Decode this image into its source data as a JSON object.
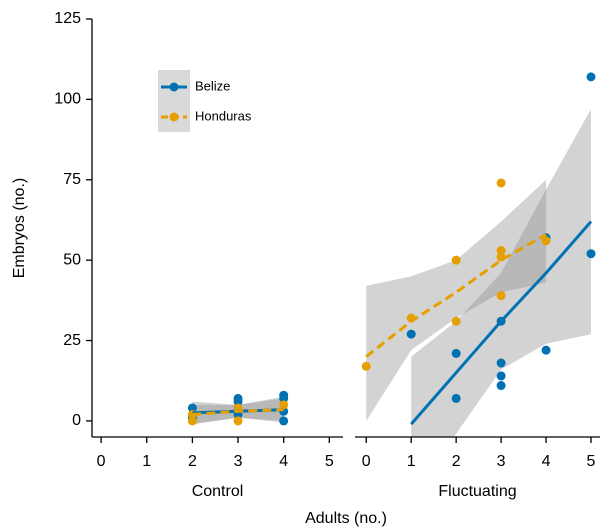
{
  "chart_data": {
    "type": "scatter",
    "ylabel": "Embryos (no.)",
    "xlabel": "Adults (no.)",
    "ylim": [
      -5,
      125
    ],
    "yticks": [
      0,
      25,
      50,
      75,
      100,
      125
    ],
    "legend": "upper left",
    "series": [
      {
        "name": "Belize",
        "color": "#0072b2",
        "line_style": "solid"
      },
      {
        "name": "Honduras",
        "color": "#e69f00",
        "line_style": "dashed"
      }
    ],
    "facets": [
      {
        "title": "Control",
        "xlim": [
          -0.2,
          5.3
        ],
        "xticks": [
          0,
          1,
          2,
          3,
          4,
          5
        ],
        "series": [
          {
            "x": [
              2,
              2,
              3,
              3,
              3,
              3,
              4,
              4,
              4,
              4
            ],
            "values": [
              4,
              1,
              7,
              6,
              2,
              3,
              8,
              7,
              3,
              0
            ],
            "fit": {
              "x": [
                2,
                3,
                4
              ],
              "values": [
                2.5,
                3,
                3.5
              ],
              "lower": [
                -1,
                1,
                -0.5
              ],
              "upper": [
                6,
                5,
                7.5
              ]
            }
          },
          {
            "x": [
              2,
              2,
              3,
              3,
              4
            ],
            "values": [
              0,
              2,
              0,
              4,
              5
            ],
            "fit": {
              "x": [
                2,
                3,
                4
              ],
              "values": [
                2,
                3,
                3.5
              ],
              "lower": [
                -1,
                1,
                0
              ],
              "upper": [
                5,
                5,
                7
              ]
            }
          }
        ]
      },
      {
        "title": "Fluctuating",
        "xlim": [
          -0.25,
          5.2
        ],
        "xticks": [
          0,
          1,
          2,
          3,
          4,
          5
        ],
        "series": [
          {
            "x": [
              1,
              2,
              2,
              3,
              3,
              3,
              3,
              4,
              4,
              5,
              5
            ],
            "values": [
              27,
              21,
              7,
              31,
              18,
              14,
              11,
              57,
              22,
              107,
              52
            ],
            "fit": {
              "x": [
                1,
                2,
                3,
                4,
                5
              ],
              "values": [
                -1,
                15,
                31,
                46,
                62
              ],
              "lower": [
                -22,
                -4,
                16,
                24,
                27
              ],
              "upper": [
                20,
                31,
                46,
                72,
                97
              ]
            }
          },
          {
            "x": [
              0,
              1,
              2,
              2,
              3,
              3,
              3,
              3,
              4
            ],
            "values": [
              17,
              32,
              50,
              31,
              74,
              53,
              51,
              39,
              56
            ],
            "fit": {
              "x": [
                0,
                1,
                2,
                3,
                4
              ],
              "values": [
                20,
                31,
                40,
                50,
                58
              ],
              "lower": [
                0,
                22,
                32,
                40,
                43
              ],
              "upper": [
                42,
                45,
                50,
                62,
                75
              ]
            }
          }
        ]
      }
    ]
  }
}
